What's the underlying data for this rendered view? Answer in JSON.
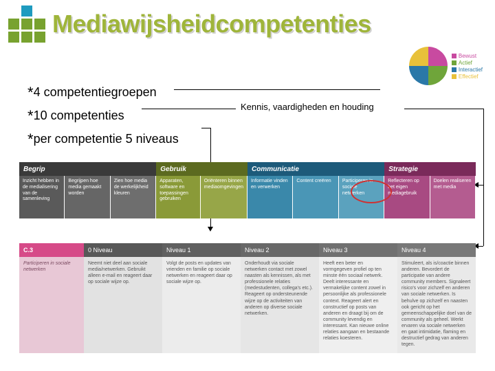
{
  "title": "Mediawijsheidcompetenties",
  "logo_colors": [
    "#ffffff",
    "#1e9bbf",
    "#ffffff",
    "#78a22f",
    "#78a22f",
    "#78a22f",
    "#78a22f",
    "#78a22f",
    "#78a22f"
  ],
  "pie": {
    "slices": [
      {
        "label": "Bewust",
        "color": "#c84aa0",
        "pct": 25
      },
      {
        "label": "Actief",
        "color": "#6fa53a",
        "pct": 25
      },
      {
        "label": "Interactief",
        "color": "#2a78a8",
        "pct": 25
      },
      {
        "label": "Effectief",
        "color": "#e8c13a",
        "pct": 25
      }
    ]
  },
  "bullets": [
    "4 competentiegroepen",
    "10 competenties",
    "per competentie 5 niveaus"
  ],
  "kvh_label": "Kennis, vaardigheden en houding",
  "band1": {
    "groups": [
      {
        "header": "Begrip",
        "header_color": "#3a3a3a",
        "cols": [
          {
            "text": "Inzicht hebben in de medialisering van de samenleving",
            "bg": "#5a5a5a"
          },
          {
            "text": "Begrijpen hoe media gemaakt worden",
            "bg": "#666666"
          },
          {
            "text": "Zien hoe media de werkelijkheid kleuren",
            "bg": "#6e6e6e"
          }
        ]
      },
      {
        "header": "Gebruik",
        "header_color": "#5c6a20",
        "cols": [
          {
            "text": "Apparaten, software en toepassingen gebruiken",
            "bg": "#8a9a38"
          },
          {
            "text": "Oriënteren binnen mediaomgevingen",
            "bg": "#97a648"
          }
        ]
      },
      {
        "header": "Communicatie",
        "header_color": "#1d5a7a",
        "cols": [
          {
            "text": "Informatie vinden en verwerken",
            "bg": "#3a88aa"
          },
          {
            "text": "Content creëren",
            "bg": "#4a96b6"
          },
          {
            "text": "Participeren in sociale netwerken",
            "bg": "#5ba2be"
          }
        ]
      },
      {
        "header": "Strategie",
        "header_color": "#7a2a5a",
        "cols": [
          {
            "text": "Reflecteren op het eigen mediagebruik",
            "bg": "#a84a82"
          },
          {
            "text": "Doelen realiseren met media",
            "bg": "#b45c90"
          }
        ]
      }
    ]
  },
  "band2": {
    "row_label": "C.3",
    "row_title": "Participeren in sociale netwerken",
    "row_hdr_bg": "#d64a88",
    "row_body_bg": "#e8c8d6",
    "row_body_color": "#7a4a60",
    "levels": [
      {
        "hdr": "0 Niveau",
        "hdr_bg": "#585858",
        "body_bg": "#e2e2e2",
        "text": "Neemt niet deel aan sociale media/netwerken. Gebruikt alleen e-mail en reageert daar op sociale wijze op."
      },
      {
        "hdr": "Niveau 1",
        "hdr_bg": "#606060",
        "body_bg": "#ececec",
        "text": "Volgt de posts en updates van vrienden en familie op sociale netwerken en reageert daar op sociale wijze op."
      },
      {
        "hdr": "Niveau 2",
        "hdr_bg": "#686868",
        "body_bg": "#e6e6e6",
        "text": "Onderhoudt via sociale netwerken contact met zowel naasten als kennissen, als met professionele relaties (medestudenten, collega's etc.). Reageert op ondersteunende wijze op de activiteiten van anderen op diverse sociale netwerken."
      },
      {
        "hdr": "Niveau 3",
        "hdr_bg": "#707070",
        "body_bg": "#efefef",
        "text": "Heeft een beter en vormgegeven profiel op ten minste één sociaal netwerk. Deelt interessante en vermakelijke content zowel in persoonlijke als professionele context. Reageert alert en constructief op posts van anderen en draagt bij om de community levendig en interessant. Kan nieuwe online relaties aangaan en bestaande relaties koesteren."
      },
      {
        "hdr": "Niveau 4",
        "hdr_bg": "#787878",
        "body_bg": "#e9e9e9",
        "text": "Stimuleert, als is/coactie binnen anderen. Bevordert de participatie van andere community members. Signaleert risico's voor zichzelf en anderen van sociale netwerken. Is behulve op zichzelf en naasten ook gericht op het gemeenschappelijke doel van de community als geheel. Werkt ervaren via sociale netwerken en gaat intimidatie, flaming en destructief gedrag van anderen tegen."
      }
    ]
  }
}
